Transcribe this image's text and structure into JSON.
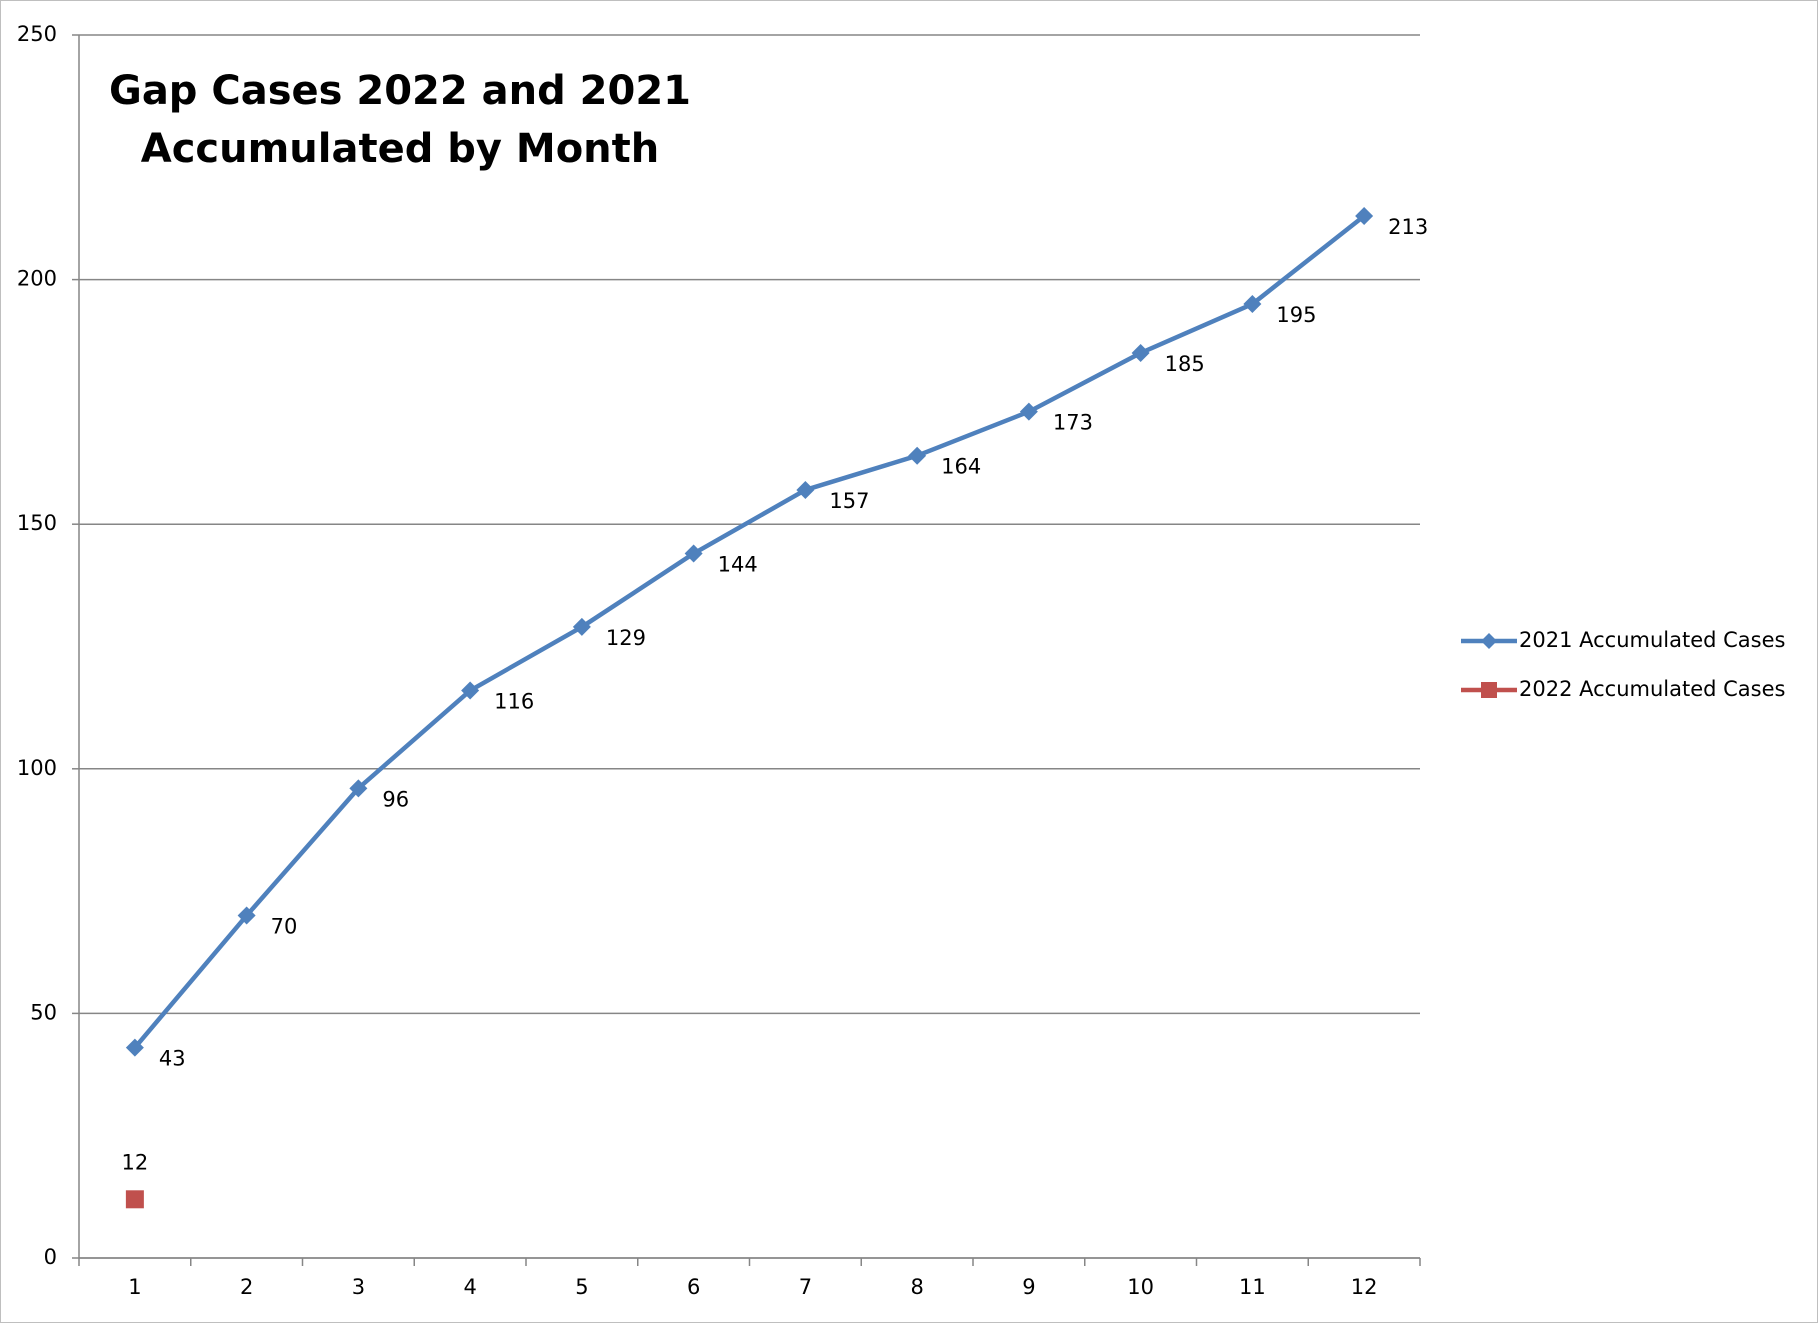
{
  "chart_data": {
    "type": "line",
    "title": [
      "Gap Cases 2022 and 2021",
      "Accumulated by Month"
    ],
    "categories": [
      "1",
      "2",
      "3",
      "4",
      "5",
      "6",
      "7",
      "8",
      "9",
      "10",
      "11",
      "12"
    ],
    "series": [
      {
        "name": "2021 Accumulated Cases",
        "color": "#4f81bd",
        "marker": "diamond",
        "values": [
          43,
          70,
          96,
          116,
          129,
          144,
          157,
          164,
          173,
          185,
          195,
          213
        ]
      },
      {
        "name": "2022 Accumulated Cases",
        "color": "#c0504d",
        "marker": "square",
        "values": [
          12,
          null,
          null,
          null,
          null,
          null,
          null,
          null,
          null,
          null,
          null,
          null
        ]
      }
    ],
    "ylim": [
      0,
      250
    ],
    "yticks": [
      0,
      50,
      100,
      150,
      200,
      250
    ],
    "grid": true,
    "legend": "right"
  }
}
